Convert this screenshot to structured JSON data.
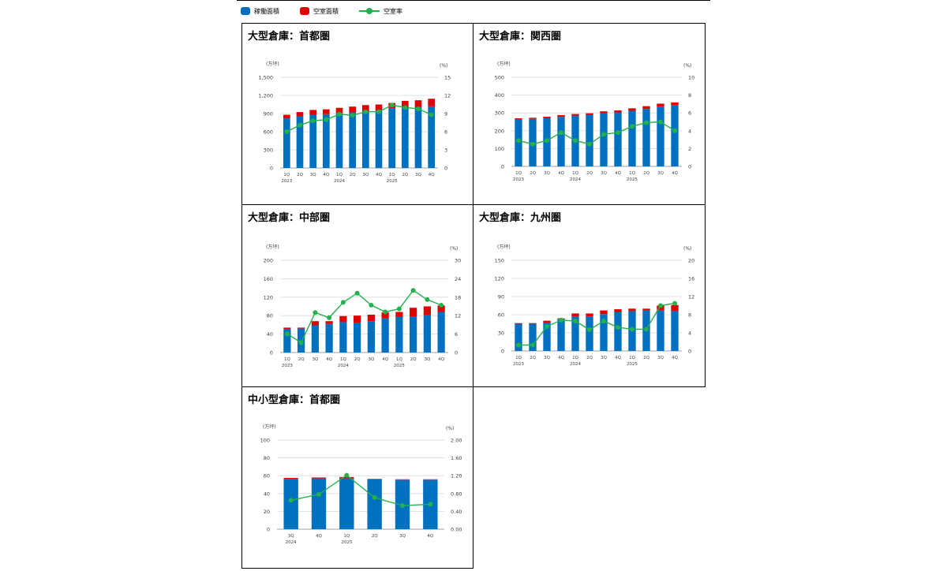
{
  "legend": {
    "items": [
      {
        "label": "稼働面積",
        "color": "#0070c0",
        "kind": "bar"
      },
      {
        "label": "空室面積",
        "color": "#e00000",
        "kind": "bar"
      },
      {
        "label": "空室率",
        "color": "#22b14c",
        "kind": "line"
      }
    ]
  },
  "chart_data": [
    {
      "type": "bar",
      "title": "大型倉庫：首都圏",
      "ylabel": "(万坪)",
      "y2label": "(%)",
      "categories": [
        "1Q",
        "2Q",
        "3Q",
        "4Q",
        "1Q",
        "2Q",
        "3Q",
        "4Q",
        "1Q",
        "2Q",
        "3Q",
        "4Q"
      ],
      "year_labels": [
        {
          "index": 0,
          "label": "2023"
        },
        {
          "index": 4,
          "label": "2024"
        },
        {
          "index": 8,
          "label": "2025"
        }
      ],
      "yticks": [
        "0",
        "300",
        "600",
        "900",
        "1,200",
        "1,500"
      ],
      "y2ticks": [
        "0",
        "3",
        "6",
        "9",
        "12",
        "15"
      ],
      "ylim": [
        0,
        1500
      ],
      "y2lim": [
        0,
        15
      ],
      "series": [
        {
          "name": "稼働面積",
          "values": [
            820,
            855,
            875,
            890,
            910,
            920,
            940,
            950,
            990,
            1000,
            1005,
            1020
          ]
        },
        {
          "name": "空室面積",
          "values": [
            60,
            70,
            85,
            80,
            85,
            95,
            100,
            100,
            85,
            110,
            115,
            125
          ]
        },
        {
          "name": "空室率",
          "axis": "y2",
          "values": [
            6.0,
            7.1,
            7.8,
            8.0,
            8.9,
            8.7,
            9.3,
            9.3,
            10.4,
            10.0,
            9.8,
            8.8
          ]
        }
      ]
    },
    {
      "type": "bar",
      "title": "大型倉庫：関西圏",
      "ylabel": "(万坪)",
      "y2label": "(%)",
      "categories": [
        "1Q",
        "2Q",
        "3Q",
        "4Q",
        "1Q",
        "2Q",
        "3Q",
        "4Q",
        "1Q",
        "2Q",
        "3Q",
        "4Q"
      ],
      "year_labels": [
        {
          "index": 0,
          "label": "2023"
        },
        {
          "index": 4,
          "label": "2024"
        },
        {
          "index": 8,
          "label": "2025"
        }
      ],
      "yticks": [
        "0",
        "100",
        "200",
        "300",
        "400",
        "500"
      ],
      "y2ticks": [
        "0",
        "2",
        "4",
        "6",
        "8",
        "10"
      ],
      "ylim": [
        0,
        500
      ],
      "y2lim": [
        0,
        10
      ],
      "series": [
        {
          "name": "稼働面積",
          "values": [
            262,
            267,
            272,
            278,
            285,
            290,
            298,
            303,
            312,
            322,
            335,
            345
          ]
        },
        {
          "name": "空室面積",
          "values": [
            8,
            6,
            7,
            10,
            9,
            8,
            11,
            11,
            14,
            16,
            17,
            14
          ]
        },
        {
          "name": "空室率",
          "axis": "y2",
          "values": [
            2.9,
            2.5,
            2.9,
            3.8,
            2.9,
            2.5,
            3.6,
            3.8,
            4.5,
            4.9,
            5.0,
            4.0
          ]
        }
      ]
    },
    {
      "type": "bar",
      "title": "大型倉庫：中部圏",
      "ylabel": "(万坪)",
      "y2label": "(%)",
      "categories": [
        "1Q",
        "2Q",
        "3Q",
        "4Q",
        "1Q",
        "2Q",
        "3Q",
        "4Q",
        "1Q",
        "2Q",
        "3Q",
        "4Q"
      ],
      "year_labels": [
        {
          "index": 0,
          "label": "2023"
        },
        {
          "index": 4,
          "label": "2024"
        },
        {
          "index": 8,
          "label": "2025"
        }
      ],
      "yticks": [
        "0",
        "40",
        "80",
        "120",
        "160",
        "200"
      ],
      "y2ticks": [
        "0",
        "6",
        "12",
        "18",
        "24",
        "30"
      ],
      "ylim": [
        0,
        200
      ],
      "y2lim": [
        0,
        30
      ],
      "series": [
        {
          "name": "稼働面積",
          "values": [
            51,
            52,
            59,
            62,
            66,
            65,
            68,
            74,
            77,
            78,
            82,
            88
          ]
        },
        {
          "name": "空室面積",
          "values": [
            3,
            2,
            9,
            6,
            13,
            15,
            14,
            13,
            11,
            19,
            18,
            14
          ]
        },
        {
          "name": "空室率",
          "axis": "y2",
          "values": [
            6.1,
            3.2,
            13.0,
            11.3,
            16.3,
            19.3,
            15.4,
            13.2,
            14.2,
            20.2,
            17.2,
            15.4
          ]
        }
      ]
    },
    {
      "type": "bar",
      "title": "大型倉庫：九州圏",
      "ylabel": "(万坪)",
      "y2label": "(%)",
      "categories": [
        "1Q",
        "2Q",
        "3Q",
        "4Q",
        "1Q",
        "2Q",
        "3Q",
        "4Q",
        "1Q",
        "2Q",
        "3Q",
        "4Q"
      ],
      "year_labels": [
        {
          "index": 0,
          "label": "2023"
        },
        {
          "index": 4,
          "label": "2024"
        },
        {
          "index": 8,
          "label": "2025"
        }
      ],
      "yticks": [
        "0",
        "30",
        "60",
        "90",
        "120",
        "150"
      ],
      "y2ticks": [
        "0",
        "4",
        "8",
        "12",
        "16",
        "20"
      ],
      "ylim": [
        0,
        150
      ],
      "y2lim": [
        0,
        20
      ],
      "series": [
        {
          "name": "稼働面積",
          "values": [
            45,
            45,
            47,
            53,
            57,
            57,
            61,
            64,
            66,
            67,
            67,
            66
          ]
        },
        {
          "name": "空室面積",
          "values": [
            1,
            1,
            3,
            1,
            5,
            5,
            6,
            5,
            4,
            3,
            8,
            10
          ]
        },
        {
          "name": "空室率",
          "axis": "y2",
          "values": [
            1.3,
            1.3,
            5.4,
            6.8,
            6.6,
            4.7,
            6.6,
            5.2,
            4.8,
            4.8,
            10.0,
            10.5
          ]
        }
      ]
    },
    {
      "type": "bar",
      "title": "中小型倉庫：首都圏",
      "ylabel": "(万坪)",
      "y2label": "(%)",
      "categories": [
        "3Q",
        "4Q",
        "1Q",
        "2Q",
        "3Q",
        "4Q"
      ],
      "year_labels": [
        {
          "index": 0,
          "label": "2024"
        },
        {
          "index": 2,
          "label": "2025"
        }
      ],
      "yticks": [
        "0",
        "20",
        "40",
        "60",
        "80",
        "100"
      ],
      "y2ticks": [
        "0.00",
        "0.40",
        "0.80",
        "1.20",
        "1.60",
        "2.00"
      ],
      "ylim": [
        0,
        100
      ],
      "y2lim": [
        0,
        2
      ],
      "series": [
        {
          "name": "稼働面積",
          "values": [
            56.5,
            57.0,
            57.0,
            56.0,
            55.5,
            55.5
          ]
        },
        {
          "name": "空室面積",
          "values": [
            1.0,
            1.0,
            1.5,
            0.5,
            0.5,
            0.5
          ]
        },
        {
          "name": "空室率",
          "axis": "y2",
          "values": [
            0.65,
            0.78,
            1.21,
            0.71,
            0.53,
            0.56
          ]
        }
      ]
    }
  ]
}
